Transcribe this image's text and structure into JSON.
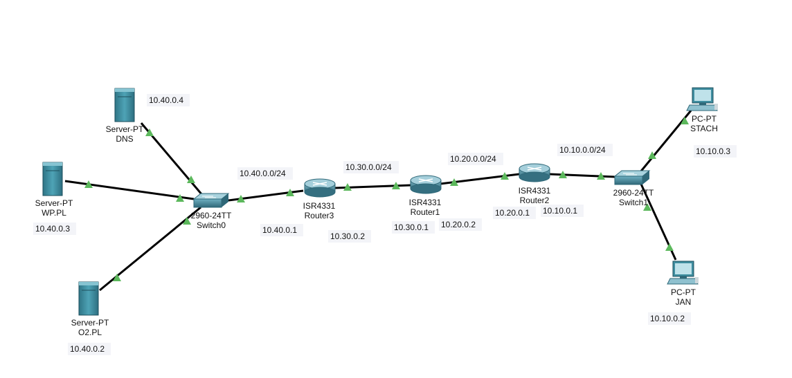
{
  "devices": {
    "server_dns": {
      "type": "Server-PT",
      "name": "DNS"
    },
    "server_wp": {
      "type": "Server-PT",
      "name": "WP.PL"
    },
    "server_o2": {
      "type": "Server-PT",
      "name": "O2.PL"
    },
    "switch0": {
      "type": "2960-24TT",
      "name": "Switch0"
    },
    "router3": {
      "type": "ISR4331",
      "name": "Router3"
    },
    "router1": {
      "type": "ISR4331",
      "name": "Router1"
    },
    "router2": {
      "type": "ISR4331",
      "name": "Router2"
    },
    "switch1": {
      "type": "2960-24TT",
      "name": "Switch1"
    },
    "pc_stach": {
      "type": "PC-PT",
      "name": "STACH"
    },
    "pc_jan": {
      "type": "PC-PT",
      "name": "JAN"
    }
  },
  "ip_labels": {
    "dns": "10.40.0.4",
    "wp": "10.40.0.3",
    "o2": "10.40.0.2",
    "net40": "10.40.0.0/24",
    "r3_lan": "10.40.0.1",
    "net30": "10.30.0.0/24",
    "r3_wan": "10.30.0.2",
    "r1_30": "10.30.0.1",
    "net20": "10.20.0.0/24",
    "r1_20": "10.20.0.2",
    "r2_20": "10.20.0.1",
    "net10": "10.10.0.0/24",
    "r2_10": "10.10.0.1",
    "stach": "10.10.0.3",
    "jan": "10.10.0.2"
  },
  "colors": {
    "link": "#000000",
    "port_indicator": "#5cb85c",
    "device_teal": "#3f8ea0",
    "label_bg": "#f3f4f8"
  }
}
